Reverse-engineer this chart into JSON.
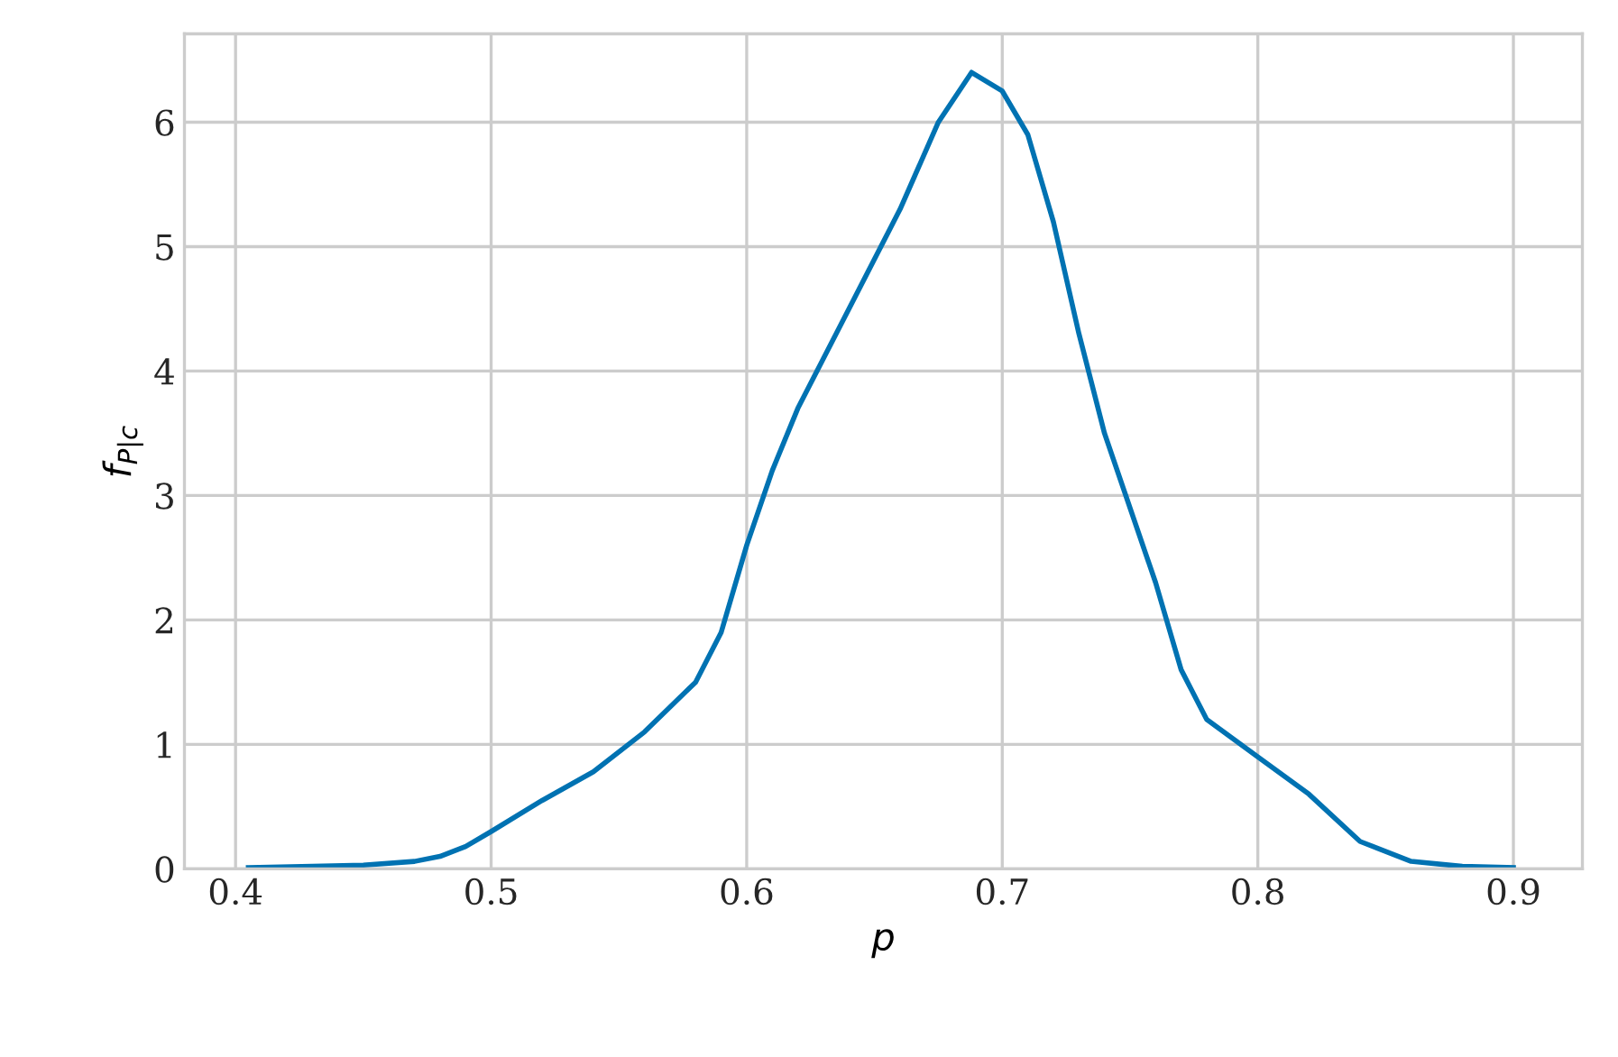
{
  "chart_data": {
    "type": "line",
    "xlabel": "p",
    "ylabel": "f$_{P|c}$",
    "grid": true,
    "marker": "none",
    "line_style": "solid",
    "xlim": [
      0.38,
      0.927
    ],
    "xticks": [
      0.4,
      0.5,
      0.6,
      0.7,
      0.8,
      0.9
    ],
    "ylim": [
      0,
      6.71
    ],
    "yticks": [
      0,
      1,
      2,
      3,
      4,
      5,
      6
    ],
    "series": [
      {
        "color": "#0072b2",
        "x": [
          0.405,
          0.43,
          0.45,
          0.47,
          0.48,
          0.49,
          0.5,
          0.52,
          0.54,
          0.56,
          0.58,
          0.59,
          0.6,
          0.61,
          0.62,
          0.64,
          0.66,
          0.675,
          0.688,
          0.7,
          0.71,
          0.72,
          0.73,
          0.74,
          0.76,
          0.77,
          0.78,
          0.79,
          0.8,
          0.82,
          0.84,
          0.86,
          0.88,
          0.9
        ],
        "values": [
          0.01,
          0.02,
          0.03,
          0.06,
          0.1,
          0.18,
          0.3,
          0.55,
          0.78,
          1.1,
          1.5,
          1.9,
          2.6,
          3.2,
          3.7,
          4.5,
          5.3,
          6.0,
          6.4,
          6.25,
          5.9,
          5.2,
          4.3,
          3.5,
          2.3,
          1.6,
          1.2,
          1.05,
          0.9,
          0.6,
          0.22,
          0.06,
          0.02,
          0.01
        ]
      }
    ]
  }
}
